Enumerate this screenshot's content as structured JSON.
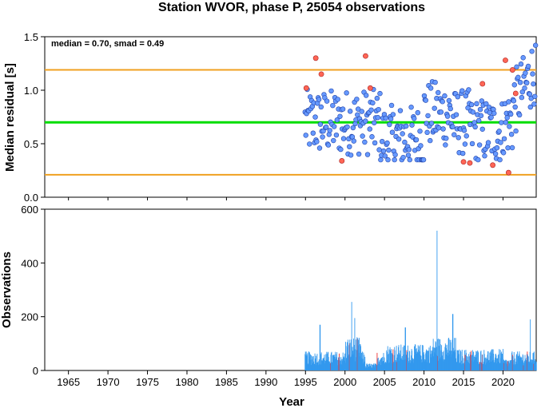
{
  "chart_data": [
    {
      "type": "scatter",
      "title": "Station WVOR, phase P, 25054 observations",
      "ylabel": "Median residual [s]",
      "annotation": "median = 0.70, smad = 0.49",
      "xlim": [
        1962,
        2024.2
      ],
      "ylim": [
        0,
        1.5
      ],
      "yticks": [
        0.0,
        0.5,
        1.0,
        1.5
      ],
      "ytick_labels": [
        "0.0",
        "0.5",
        "1.0",
        "1.5"
      ],
      "hlines": [
        {
          "y": 0.7,
          "color": "#00dd00"
        },
        {
          "y": 1.19,
          "color": "#f0a020"
        },
        {
          "y": 0.21,
          "color": "#f0a020"
        }
      ],
      "colors": {
        "normal": "#6699ff",
        "outlier": "#ff6655"
      },
      "outliers": {
        "x": [
          1995.1,
          1996.3,
          1997.0,
          1999.6,
          2002.6,
          2003.2,
          2015.0,
          2015.8,
          2017.4,
          2018.7,
          2020.3,
          2020.7,
          2021.2,
          2021.6
        ],
        "y": [
          1.02,
          1.3,
          1.15,
          0.34,
          1.32,
          1.02,
          0.33,
          0.32,
          1.06,
          0.3,
          1.28,
          0.23,
          1.19,
          0.97
        ]
      }
    },
    {
      "type": "bar",
      "xlabel": "Year",
      "ylabel": "Observations",
      "xlim": [
        1962,
        2024.2
      ],
      "ylim": [
        0,
        600
      ],
      "yticks": [
        0,
        200,
        400,
        600
      ],
      "ytick_labels": [
        "0",
        "200",
        "400",
        "600"
      ],
      "xticks": [
        1965,
        1970,
        1975,
        1980,
        1985,
        1990,
        1995,
        2000,
        2005,
        2010,
        2015,
        2020
      ],
      "xtick_labels": [
        "1965",
        "1970",
        "1975",
        "1980",
        "1985",
        "1990",
        "1995",
        "2000",
        "2005",
        "2010",
        "2015",
        "2020"
      ],
      "bar_color": "#3399ee",
      "highlight_color": "#ee3333",
      "data_start": 1994.9,
      "peaks": [
        {
          "x": 1996.8,
          "value": 170
        },
        {
          "x": 2000.8,
          "value": 255
        },
        {
          "x": 2001.2,
          "value": 195
        },
        {
          "x": 2007.6,
          "value": 160
        },
        {
          "x": 2011.6,
          "value": 520
        },
        {
          "x": 2013.6,
          "value": 210
        },
        {
          "x": 2023.4,
          "value": 190
        }
      ]
    }
  ]
}
